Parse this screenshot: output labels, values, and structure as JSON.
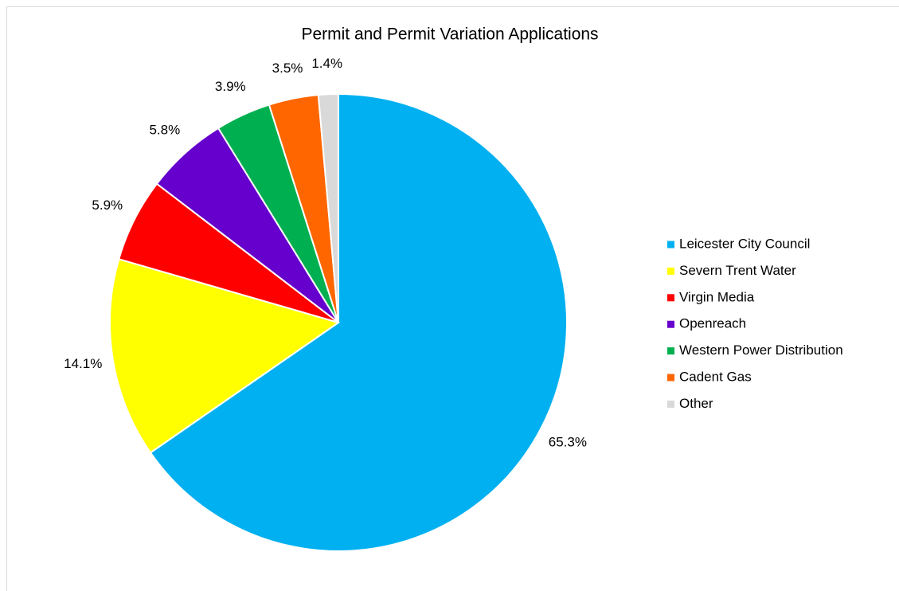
{
  "chart_data": {
    "type": "pie",
    "title": "Permit and Permit Variation Applications",
    "categories": [
      "Leicester City Council",
      "Severn Trent Water",
      "Virgin Media",
      "Openreach",
      "Western Power Distribution",
      "Cadent Gas",
      "Other"
    ],
    "values": [
      65.3,
      14.1,
      5.9,
      5.8,
      3.9,
      3.5,
      1.4
    ],
    "value_labels": [
      "65.3%",
      "14.1%",
      "5.9%",
      "5.8%",
      "3.9%",
      "3.5%",
      "1.4%"
    ],
    "colors": [
      "#00b0f0",
      "#ffff00",
      "#ff0000",
      "#6600cc",
      "#00b050",
      "#ff6600",
      "#d9d9d9"
    ],
    "legend": "right"
  }
}
